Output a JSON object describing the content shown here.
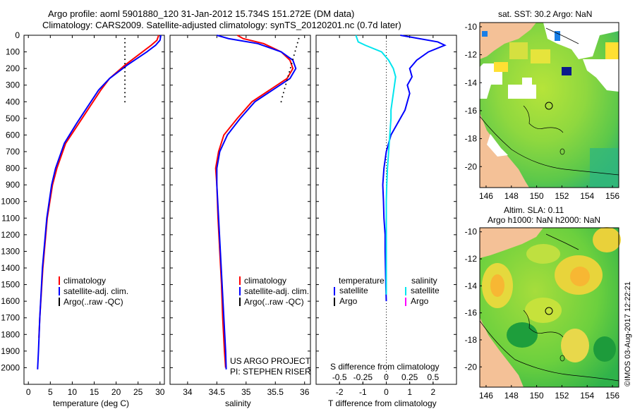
{
  "header": {
    "title_line1": "Argo profile: aoml 5901880_120 31-Jan-2012 15.734S 151.272E (DM data)",
    "title_line2": "Climatology: CARS2009. Satellite-adjusted climatology: synTS_20120201.nc (0.7d later)"
  },
  "footer": {
    "project": "US ARGO PROJECT",
    "pi": "PI: STEPHEN RISER",
    "credit": "©IMOS 03-Aug-2017 12:22:21"
  },
  "legends": {
    "temperature": [
      "climatology",
      "satellite-adj. clim.",
      "Argo(..raw -QC)"
    ],
    "salinity": [
      "climatology",
      "satellite-adj. clim.",
      "Argo(..raw -QC)"
    ],
    "difference": {
      "col1_title": "temperature",
      "col1_items": [
        "satellite",
        "Argo"
      ],
      "col2_title": "salinity",
      "col2_items": [
        "satellite",
        "Argo"
      ]
    }
  },
  "colors": {
    "climatology": "#ff0000",
    "satellite": "#0000ff",
    "argo": "#000000",
    "sal_satellite": "#00e5ee",
    "sal_argo": "#ff00ff",
    "land": "#f4c197"
  },
  "chart_data": [
    {
      "type": "line",
      "ylabel": "",
      "xlabel": "temperature (deg C)",
      "xlim": [
        -1,
        31
      ],
      "ylim": [
        2100,
        0
      ],
      "xticks": [
        0,
        5,
        10,
        15,
        20,
        25,
        30
      ],
      "yticks": [
        0,
        100,
        200,
        300,
        400,
        500,
        600,
        700,
        800,
        900,
        1000,
        1100,
        1200,
        1300,
        1400,
        1500,
        1600,
        1700,
        1800,
        1900,
        2000
      ],
      "series": [
        {
          "name": "climatology",
          "color": "#ff0000",
          "x": [
            29.7,
            29.3,
            28.0,
            26.0,
            22.0,
            18.5,
            16.5,
            14.0,
            11.5,
            8.5,
            6.5,
            5.5,
            4.3,
            3.3,
            2.6,
            2.4
          ],
          "y": [
            0,
            30,
            60,
            100,
            180,
            260,
            330,
            430,
            530,
            650,
            800,
            900,
            1100,
            1400,
            1700,
            1820
          ]
        },
        {
          "name": "satellite-adj. clim.",
          "color": "#0000ff",
          "x": [
            30.2,
            30.0,
            29.0,
            27.0,
            22.5,
            18.5,
            16.0,
            13.5,
            11.0,
            8.2,
            6.2,
            5.3,
            4.2,
            3.2,
            2.6,
            2.3,
            2.1
          ],
          "y": [
            0,
            30,
            60,
            100,
            180,
            260,
            330,
            430,
            530,
            650,
            800,
            900,
            1100,
            1400,
            1700,
            1900,
            2010
          ]
        },
        {
          "name": "Argo(..raw -QC)",
          "color": "#000000",
          "x": [
            22,
            22,
            22,
            22,
            22,
            22,
            22,
            22,
            22,
            22,
            22,
            22,
            22,
            22,
            22,
            22
          ],
          "y": [
            20,
            45,
            70,
            95,
            120,
            145,
            170,
            195,
            220,
            245,
            270,
            295,
            320,
            345,
            370,
            400
          ]
        }
      ]
    },
    {
      "type": "line",
      "xlabel": "salinity",
      "xlim": [
        33.7,
        36.1
      ],
      "ylim": [
        2100,
        0
      ],
      "xticks": [
        34,
        34.5,
        35,
        35.5,
        36
      ],
      "series": [
        {
          "name": "climatology",
          "color": "#ff0000",
          "x": [
            34.85,
            34.95,
            35.3,
            35.6,
            35.75,
            35.8,
            35.7,
            35.4,
            35.1,
            34.85,
            34.62,
            34.53,
            34.48,
            34.5,
            34.52,
            34.55,
            34.58,
            34.6,
            34.63,
            34.65
          ],
          "y": [
            0,
            20,
            50,
            100,
            150,
            200,
            260,
            330,
            400,
            500,
            600,
            700,
            800,
            900,
            1100,
            1300,
            1500,
            1700,
            1900,
            2000
          ]
        },
        {
          "name": "satellite-adj. clim.",
          "color": "#0000ff",
          "x": [
            34.5,
            34.7,
            35.2,
            35.6,
            35.8,
            35.85,
            35.75,
            35.45,
            35.15,
            34.9,
            34.68,
            34.55,
            34.5,
            34.5,
            34.53,
            34.56,
            34.59,
            34.62,
            34.65,
            34.66
          ],
          "y": [
            0,
            20,
            50,
            100,
            150,
            200,
            260,
            330,
            400,
            500,
            600,
            700,
            800,
            900,
            1100,
            1300,
            1500,
            1700,
            1900,
            2010
          ]
        },
        {
          "name": "Argo(..raw -QC)",
          "color": "#000000",
          "x": [
            35.9,
            35.88,
            35.86,
            35.84,
            35.82,
            35.8,
            35.78,
            35.76,
            35.74,
            35.72,
            35.7,
            35.68,
            35.66,
            35.64,
            35.62,
            35.6
          ],
          "y": [
            20,
            45,
            70,
            95,
            120,
            145,
            170,
            195,
            220,
            245,
            270,
            295,
            320,
            345,
            370,
            400
          ]
        }
      ]
    },
    {
      "type": "line",
      "xlabel_bottom": "T difference from climatology",
      "xlabel_top": "S difference from climatology",
      "xlim_T": [
        -3,
        3
      ],
      "ylim": [
        2100,
        0
      ],
      "xticks_T": [
        -2,
        -1,
        0,
        1,
        2
      ],
      "xticks_S": [
        -0.5,
        -0.25,
        0,
        0.25,
        0.5
      ],
      "series": [
        {
          "name": "temperature satellite",
          "color": "#0000ff",
          "x": [
            0.6,
            2.2,
            2.5,
            1.8,
            1.3,
            1.0,
            1.1,
            0.9,
            1.0,
            0.9,
            0.8,
            0.6,
            0.2,
            0,
            -0.1,
            -0.15,
            -0.12,
            -0.1,
            -0.05,
            -0.05,
            -0.02,
            0
          ],
          "y": [
            0,
            40,
            60,
            100,
            150,
            200,
            250,
            300,
            350,
            400,
            450,
            500,
            600,
            700,
            800,
            900,
            1000,
            1100,
            1200,
            1300,
            1500,
            1600
          ]
        },
        {
          "name": "salinity satellite",
          "color": "#00e5ee",
          "x": [
            -1.3,
            -1.2,
            -0.9,
            -0.2,
            0.1,
            0.3,
            0.4,
            0.35,
            0.3,
            0.25,
            0.2,
            0.2,
            0.15,
            0.1,
            0.05,
            0.02,
            0,
            0,
            0,
            0
          ],
          "y": [
            0,
            40,
            60,
            100,
            150,
            200,
            250,
            300,
            350,
            400,
            450,
            500,
            600,
            700,
            800,
            900,
            1000,
            1200,
            1400,
            1560
          ]
        }
      ]
    }
  ],
  "maps": [
    {
      "title_line1": "sat. SST: 30.2  Argo: NaN",
      "title_line2": "",
      "xticks": [
        146,
        148,
        150,
        152,
        154,
        156
      ],
      "yticks": [
        -10,
        -12,
        -14,
        -16,
        -18,
        -20
      ],
      "xlim": [
        145.5,
        156.5
      ],
      "ylim": [
        -21.5,
        -9.7
      ],
      "marker": {
        "lon": 151.272,
        "lat": -15.734
      }
    },
    {
      "title_line1": "Altim. SLA: 0.11",
      "title_line2": "Argo h1000: NaN h2000: NaN",
      "xticks": [
        146,
        148,
        150,
        152,
        154,
        156
      ],
      "yticks": [
        -10,
        -12,
        -14,
        -16,
        -18,
        -20
      ],
      "xlim": [
        145.5,
        156.5
      ],
      "ylim": [
        -21.5,
        -9.7
      ],
      "marker": {
        "lon": 151.272,
        "lat": -15.734
      }
    }
  ]
}
